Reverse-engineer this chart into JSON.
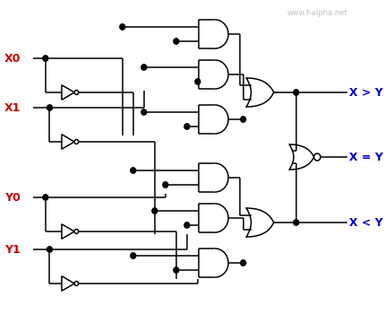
{
  "watermark": "www.f-alpha.net",
  "inputs": [
    "X0",
    "X1",
    "Y0",
    "Y1"
  ],
  "outputs": [
    "X > Y",
    "X = Y",
    "X < Y"
  ],
  "bg": "#ffffff",
  "lc": "#000000",
  "ic": "#cc0000",
  "oc": "#0000cc",
  "wc": "#c0c0c0",
  "lw": 1.1,
  "fig_w": 4.29,
  "fig_h": 3.6,
  "dpi": 100
}
